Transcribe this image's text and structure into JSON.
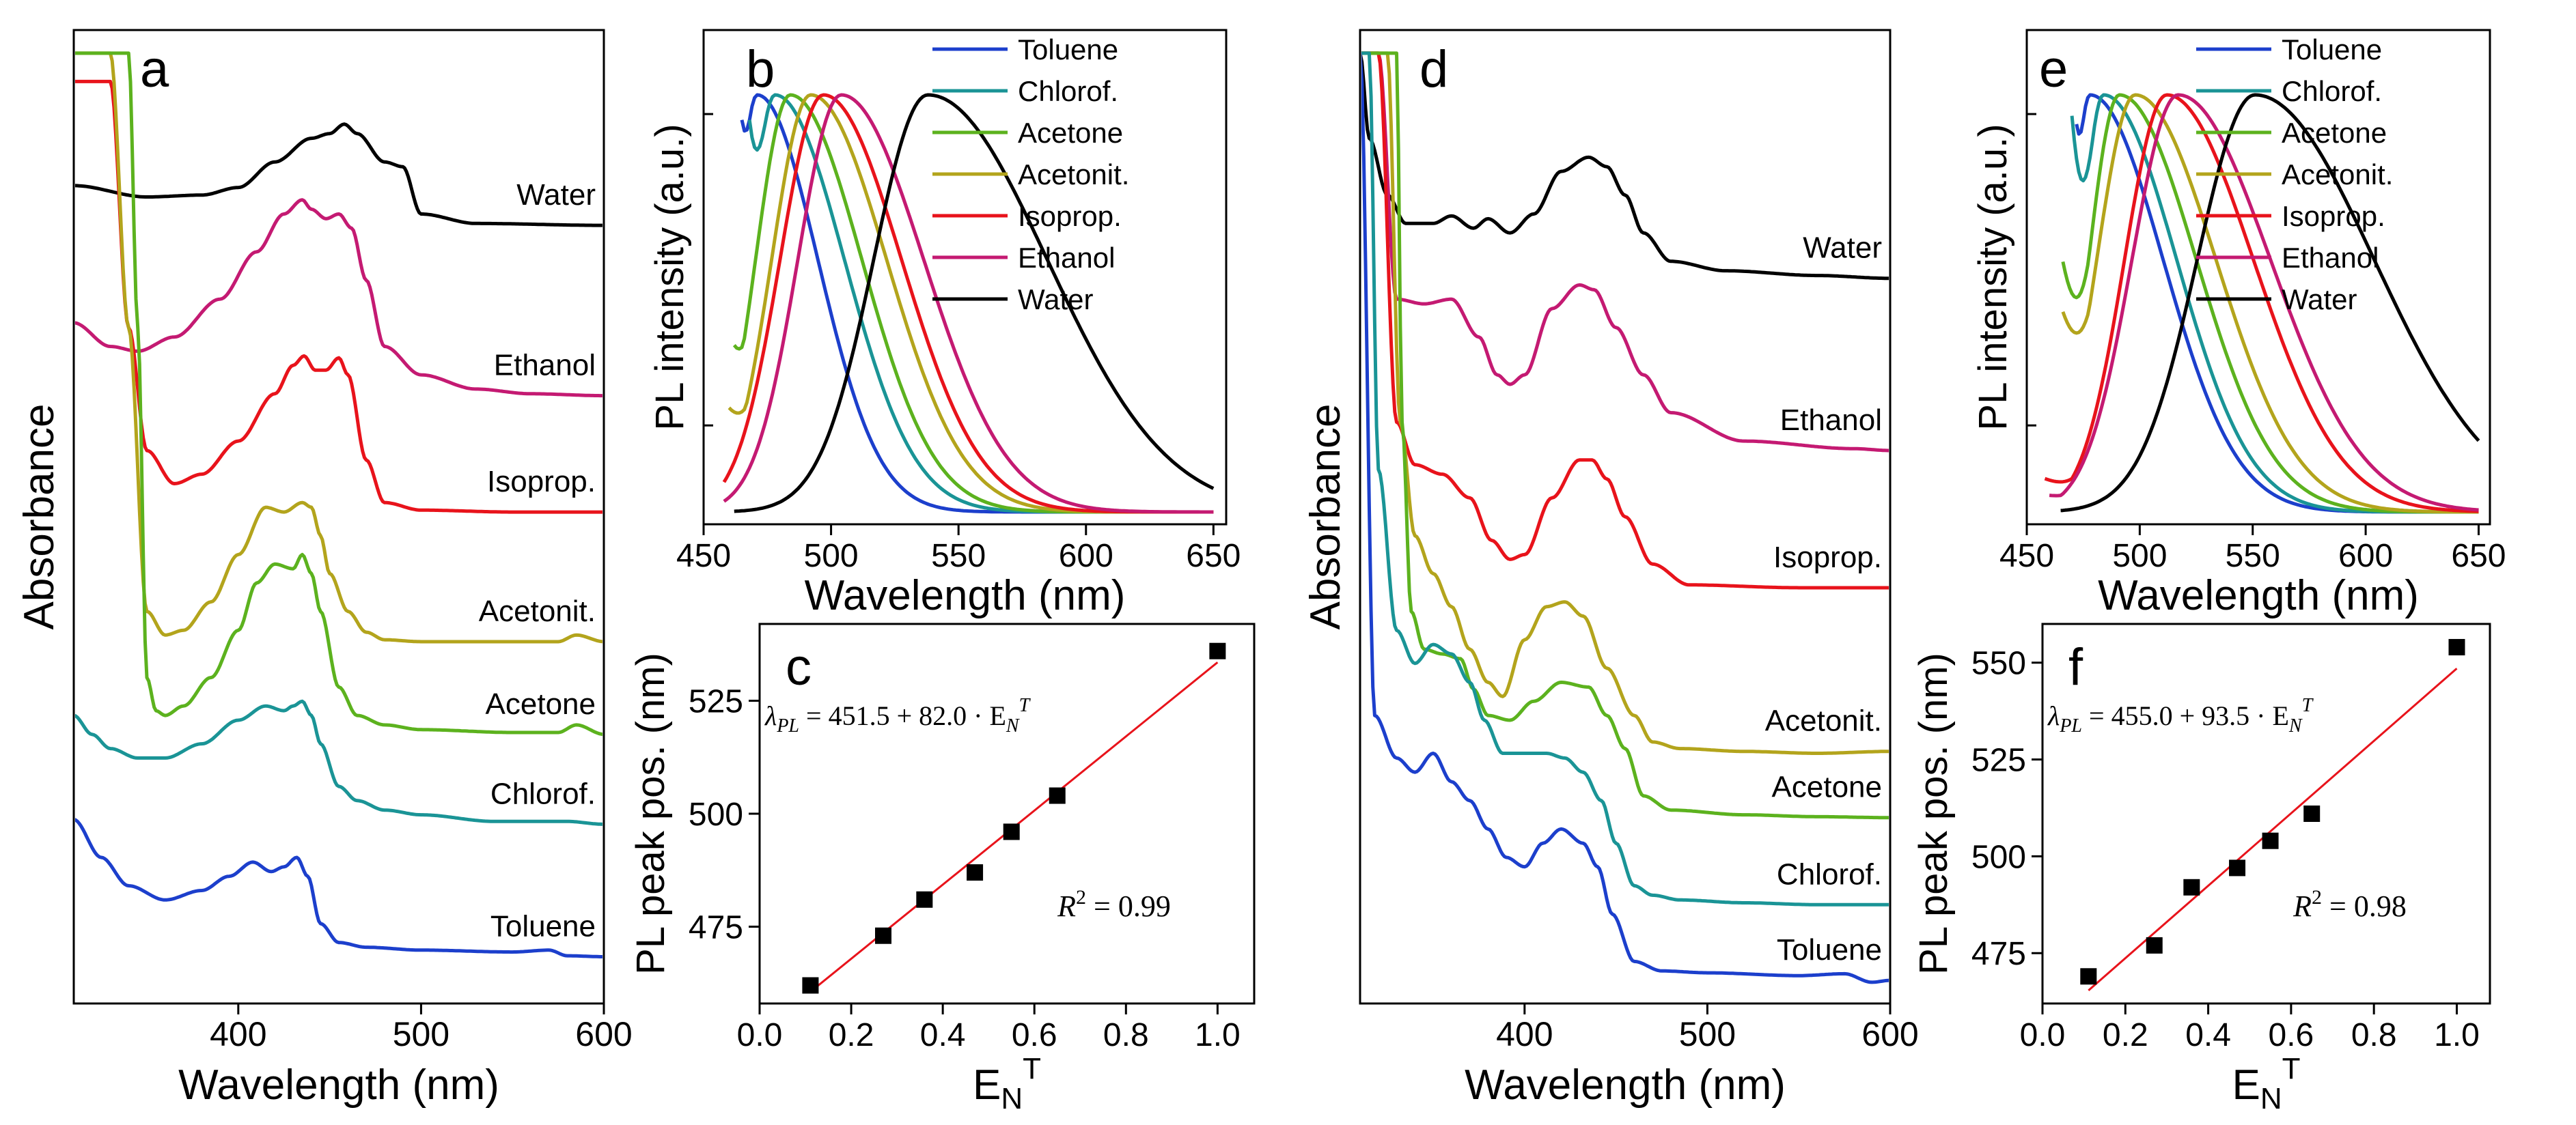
{
  "figure": {
    "panel_letters": [
      "a",
      "b",
      "c",
      "d",
      "e",
      "f"
    ]
  },
  "chart_data": [
    {
      "panel": "a",
      "type": "line",
      "title": "",
      "xlabel": "Wavelength (nm)",
      "ylabel": "Absorbance",
      "xlim": [
        310,
        600
      ],
      "ylim": [
        0,
        1
      ],
      "xticks": [
        400,
        500,
        600
      ],
      "legend": "labels-on-right",
      "series": [
        {
          "name": "Water",
          "color": "#000000",
          "x": [
            310,
            350,
            380,
            400,
            420,
            440,
            450,
            458,
            465,
            480,
            490,
            500,
            530,
            600
          ],
          "y": [
            0.85,
            0.838,
            0.84,
            0.848,
            0.875,
            0.9,
            0.905,
            0.915,
            0.905,
            0.875,
            0.87,
            0.82,
            0.81,
            0.808
          ]
        },
        {
          "name": "Ethanol",
          "color": "#c41a72",
          "x": [
            310,
            330,
            345,
            365,
            390,
            410,
            425,
            435,
            440,
            448,
            455,
            462,
            470,
            480,
            500,
            530,
            560,
            600
          ],
          "y": [
            0.705,
            0.68,
            0.675,
            0.69,
            0.73,
            0.78,
            0.82,
            0.835,
            0.825,
            0.815,
            0.82,
            0.805,
            0.75,
            0.68,
            0.65,
            0.635,
            0.63,
            0.628
          ]
        },
        {
          "name": "Isoprop.",
          "color": "#e8131b",
          "x": [
            330,
            340,
            350,
            365,
            380,
            400,
            420,
            430,
            436,
            442,
            448,
            455,
            460,
            470,
            480,
            500,
            550,
            600
          ],
          "y": [
            0.96,
            0.7,
            0.57,
            0.535,
            0.545,
            0.58,
            0.63,
            0.66,
            0.67,
            0.655,
            0.655,
            0.668,
            0.65,
            0.56,
            0.515,
            0.507,
            0.505,
            0.505
          ]
        },
        {
          "name": "Acetonit.",
          "color": "#b3a41c",
          "x": [
            330,
            340,
            350,
            360,
            370,
            385,
            400,
            415,
            425,
            435,
            440,
            445,
            450,
            460,
            470,
            480,
            500,
            550,
            575,
            585,
            600
          ],
          "y": [
            0.99,
            0.7,
            0.4,
            0.375,
            0.38,
            0.41,
            0.46,
            0.51,
            0.505,
            0.515,
            0.51,
            0.48,
            0.44,
            0.4,
            0.378,
            0.37,
            0.368,
            0.368,
            0.368,
            0.375,
            0.368
          ]
        },
        {
          "name": "Acetone",
          "color": "#5cb21e",
          "x": [
            340,
            345,
            350,
            355,
            360,
            370,
            385,
            400,
            410,
            420,
            430,
            435,
            440,
            445,
            455,
            465,
            480,
            500,
            550,
            575,
            585,
            600
          ],
          "y": [
            0.99,
            0.7,
            0.33,
            0.295,
            0.29,
            0.3,
            0.33,
            0.38,
            0.43,
            0.45,
            0.445,
            0.46,
            0.44,
            0.4,
            0.32,
            0.29,
            0.28,
            0.275,
            0.272,
            0.272,
            0.28,
            0.27
          ]
        },
        {
          "name": "Chlorof.",
          "color": "#1a9496",
          "x": [
            310,
            320,
            330,
            345,
            360,
            380,
            400,
            415,
            425,
            430,
            435,
            440,
            445,
            455,
            465,
            480,
            500,
            540,
            580,
            600
          ],
          "y": [
            0.29,
            0.27,
            0.255,
            0.245,
            0.245,
            0.26,
            0.285,
            0.3,
            0.295,
            0.3,
            0.305,
            0.29,
            0.26,
            0.215,
            0.2,
            0.19,
            0.185,
            0.178,
            0.178,
            0.175
          ]
        },
        {
          "name": "Toluene",
          "color": "#1c3fcc",
          "x": [
            310,
            325,
            340,
            360,
            380,
            395,
            408,
            418,
            425,
            432,
            438,
            445,
            455,
            470,
            500,
            550,
            570,
            580,
            600
          ],
          "y": [
            0.18,
            0.14,
            0.11,
            0.095,
            0.105,
            0.12,
            0.135,
            0.125,
            0.13,
            0.14,
            0.12,
            0.07,
            0.05,
            0.045,
            0.042,
            0.04,
            0.042,
            0.036,
            0.035
          ]
        }
      ]
    },
    {
      "panel": "b",
      "type": "line",
      "title": "",
      "xlabel": "Wavelength (nm)",
      "ylabel": "PL intensity (a.u.)",
      "xlim": [
        450,
        655
      ],
      "ylim": [
        0,
        1
      ],
      "xticks": [
        450,
        500,
        550,
        600,
        650
      ],
      "legend": "top-right",
      "series": [
        {
          "name": "Toluene",
          "color": "#1c3fcc",
          "peak": 471,
          "hwhm_left": 10,
          "hwhm_right": 28,
          "x_start": 465,
          "y_start": 0.94
        },
        {
          "name": "Chlorof.",
          "color": "#1a9496",
          "peak": 478,
          "hwhm_left": 12,
          "hwhm_right": 32,
          "x_start": 468,
          "y_start": 0.94
        },
        {
          "name": "Acetone",
          "color": "#5cb21e",
          "peak": 484,
          "hwhm_left": 16,
          "hwhm_right": 33,
          "x_start": 462,
          "y_start": 0.4
        },
        {
          "name": "Acetonit.",
          "color": "#b3a41c",
          "peak": 492,
          "hwhm_left": 18,
          "hwhm_right": 35,
          "x_start": 460,
          "y_start": 0.25
        },
        {
          "name": "Isoprop.",
          "color": "#e8131b",
          "peak": 497,
          "hwhm_left": 20,
          "hwhm_right": 36,
          "x_start": 458,
          "y_start": 0.04
        },
        {
          "name": "Ethanol",
          "color": "#c41a72",
          "peak": 504,
          "hwhm_left": 20,
          "hwhm_right": 38,
          "x_start": 458,
          "y_start": 0.02
        },
        {
          "name": "Water",
          "color": "#000000",
          "peak": 538,
          "hwhm_left": 25,
          "hwhm_right": 55,
          "x_start": 462,
          "y_start": 0.0
        }
      ]
    },
    {
      "panel": "c",
      "type": "scatter",
      "title": "",
      "xlabel": "E",
      "xlabel_sub": "N",
      "xlabel_sup": "T",
      "ylabel": "PL peak pos. (nm)",
      "xlim": [
        0,
        1.08
      ],
      "ylim": [
        458,
        542
      ],
      "xticks": [
        0.0,
        0.2,
        0.4,
        0.6,
        0.8,
        1.0
      ],
      "yticks": [
        475,
        500,
        525
      ],
      "x": [
        0.111,
        0.27,
        0.36,
        0.47,
        0.55,
        0.65,
        1.0
      ],
      "y": [
        462,
        473,
        481,
        487,
        496,
        504,
        536
      ],
      "fit": {
        "intercept": 451.5,
        "slope": 82.0,
        "x_range": [
          0.111,
          1.0
        ]
      },
      "equation": {
        "lhs": "λ",
        "lhs_sub": "PL",
        "eq": " = 451.5 + 82.0 · E",
        "sub": "N",
        "sup": "T"
      },
      "r2": {
        "label": "R",
        "sup": "2",
        "value": " = 0.99"
      }
    },
    {
      "panel": "d",
      "type": "line",
      "title": "",
      "xlabel": "Wavelength (nm)",
      "ylabel": "Absorbance",
      "xlim": [
        310,
        600
      ],
      "ylim": [
        0,
        1
      ],
      "xticks": [
        400,
        500,
        600
      ],
      "legend": "labels-on-right",
      "series": [
        {
          "name": "Water",
          "color": "#000000",
          "x": [
            310,
            315,
            325,
            335,
            350,
            360,
            372,
            380,
            392,
            405,
            420,
            435,
            445,
            455,
            465,
            480,
            510,
            560,
            600
          ],
          "y": [
            0.99,
            0.9,
            0.84,
            0.81,
            0.81,
            0.818,
            0.805,
            0.815,
            0.8,
            0.82,
            0.865,
            0.88,
            0.87,
            0.84,
            0.8,
            0.77,
            0.76,
            0.755,
            0.752
          ]
        },
        {
          "name": "Ethanol",
          "color": "#c41a72",
          "x": [
            320,
            330,
            345,
            360,
            375,
            385,
            392,
            400,
            415,
            430,
            438,
            450,
            465,
            480,
            520,
            580,
            600
          ],
          "y": [
            0.99,
            0.73,
            0.725,
            0.73,
            0.69,
            0.65,
            0.64,
            0.65,
            0.72,
            0.745,
            0.74,
            0.7,
            0.65,
            0.61,
            0.58,
            0.572,
            0.57
          ]
        },
        {
          "name": "Isoprop.",
          "color": "#e8131b",
          "x": [
            320,
            330,
            340,
            355,
            370,
            382,
            392,
            400,
            415,
            430,
            437,
            445,
            455,
            470,
            490,
            550,
            600
          ],
          "y": [
            0.99,
            0.6,
            0.555,
            0.545,
            0.52,
            0.475,
            0.455,
            0.46,
            0.52,
            0.56,
            0.56,
            0.54,
            0.5,
            0.45,
            0.428,
            0.425,
            0.425
          ]
        },
        {
          "name": "Acetonit.",
          "color": "#b3a41c",
          "x": [
            325,
            332,
            340,
            350,
            360,
            370,
            380,
            388,
            400,
            412,
            422,
            432,
            445,
            460,
            470,
            485,
            520,
            560,
            600
          ],
          "y": [
            0.99,
            0.6,
            0.48,
            0.44,
            0.405,
            0.36,
            0.325,
            0.31,
            0.37,
            0.405,
            0.41,
            0.395,
            0.34,
            0.29,
            0.262,
            0.255,
            0.252,
            0.25,
            0.252
          ]
        },
        {
          "name": "Acetone",
          "color": "#5cb21e",
          "x": [
            330,
            333,
            338,
            345,
            355,
            365,
            372,
            380,
            392,
            405,
            420,
            435,
            445,
            455,
            465,
            480,
            520,
            560,
            600
          ],
          "y": [
            0.99,
            0.6,
            0.4,
            0.36,
            0.355,
            0.35,
            0.318,
            0.29,
            0.285,
            0.305,
            0.325,
            0.32,
            0.29,
            0.255,
            0.205,
            0.19,
            0.185,
            0.183,
            0.182
          ]
        },
        {
          "name": "Chlorof.",
          "color": "#1a9496",
          "x": [
            315,
            320,
            330,
            340,
            350,
            360,
            370,
            378,
            388,
            400,
            412,
            422,
            432,
            442,
            450,
            460,
            470,
            485,
            520,
            560,
            600
          ],
          "y": [
            0.99,
            0.55,
            0.38,
            0.345,
            0.365,
            0.355,
            0.325,
            0.285,
            0.25,
            0.25,
            0.25,
            0.245,
            0.23,
            0.2,
            0.155,
            0.11,
            0.1,
            0.095,
            0.092,
            0.09,
            0.09
          ]
        },
        {
          "name": "Toluene",
          "color": "#1c3fcc",
          "x": [
            310,
            318,
            330,
            340,
            350,
            360,
            370,
            380,
            390,
            400,
            410,
            420,
            432,
            440,
            448,
            460,
            475,
            500,
            550,
            575,
            590,
            600
          ],
          "y": [
            0.99,
            0.29,
            0.245,
            0.23,
            0.25,
            0.22,
            0.2,
            0.17,
            0.14,
            0.13,
            0.155,
            0.17,
            0.155,
            0.13,
            0.08,
            0.03,
            0.02,
            0.018,
            0.015,
            0.017,
            0.008,
            0.01
          ]
        }
      ]
    },
    {
      "panel": "e",
      "type": "line",
      "title": "",
      "xlabel": "Wavelength (nm)",
      "ylabel": "PL intensity (a.u.)",
      "xlim": [
        450,
        655
      ],
      "ylim": [
        0,
        1
      ],
      "xticks": [
        450,
        500,
        550,
        600,
        650
      ],
      "legend": "top-right",
      "series": [
        {
          "name": "Toluene",
          "color": "#1c3fcc",
          "peak": 478,
          "hwhm_left": 10,
          "hwhm_right": 38,
          "x_start": 472,
          "y_start": 0.93
        },
        {
          "name": "Chlorof.",
          "color": "#1a9496",
          "peak": 484,
          "hwhm_left": 12,
          "hwhm_right": 38,
          "x_start": 470,
          "y_start": 0.95
        },
        {
          "name": "Acetone",
          "color": "#5cb21e",
          "peak": 491,
          "hwhm_left": 16,
          "hwhm_right": 40,
          "x_start": 466,
          "y_start": 0.6
        },
        {
          "name": "Acetonit.",
          "color": "#b3a41c",
          "peak": 498,
          "hwhm_left": 20,
          "hwhm_right": 42,
          "x_start": 466,
          "y_start": 0.48
        },
        {
          "name": "Isoprop.",
          "color": "#e8131b",
          "peak": 512,
          "hwhm_left": 22,
          "hwhm_right": 45,
          "x_start": 458,
          "y_start": 0.08
        },
        {
          "name": "Ethanol",
          "color": "#c41a72",
          "peak": 517,
          "hwhm_left": 24,
          "hwhm_right": 48,
          "x_start": 460,
          "y_start": 0.04
        },
        {
          "name": "Water",
          "color": "#000000",
          "peak": 551,
          "hwhm_left": 30,
          "hwhm_right": 62,
          "x_start": 465,
          "y_start": 0.0
        }
      ]
    },
    {
      "panel": "f",
      "type": "scatter",
      "title": "",
      "xlabel": "E",
      "xlabel_sub": "N",
      "xlabel_sup": "T",
      "ylabel": "PL peak pos. (nm)",
      "xlim": [
        0,
        1.08
      ],
      "ylim": [
        462,
        560
      ],
      "xticks": [
        0.0,
        0.2,
        0.4,
        0.6,
        0.8,
        1.0
      ],
      "yticks": [
        475,
        500,
        525,
        550
      ],
      "x": [
        0.111,
        0.27,
        0.36,
        0.47,
        0.55,
        0.65,
        1.0
      ],
      "y": [
        469,
        477,
        492,
        497,
        504,
        511,
        554
      ],
      "fit": {
        "intercept": 455.0,
        "slope": 93.5,
        "x_range": [
          0.111,
          1.0
        ]
      },
      "equation": {
        "lhs": "λ",
        "lhs_sub": "PL",
        "eq": " = 455.0 + 93.5 · E",
        "sub": "N",
        "sup": "T"
      },
      "r2": {
        "label": "R",
        "sup": "2",
        "value": " = 0.98"
      }
    }
  ]
}
